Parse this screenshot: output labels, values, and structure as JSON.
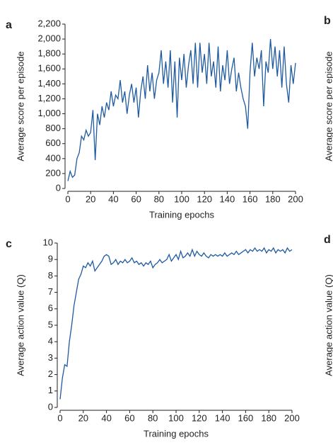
{
  "chart_data": [
    {
      "type": "line",
      "panel": "a",
      "y_label": "Average score per episode",
      "x_label": "Training epochs",
      "color": "#1f5aa0",
      "xlim": [
        0,
        200
      ],
      "xticks": [
        0,
        20,
        40,
        60,
        80,
        100,
        120,
        140,
        160,
        180,
        200
      ],
      "ylim": [
        0,
        2200
      ],
      "yticks": [
        0,
        200,
        400,
        600,
        800,
        {
          "value": 1000,
          "label": "1,000"
        },
        {
          "value": 1200,
          "label": "1,200"
        },
        {
          "value": 1400,
          "label": "1,400"
        },
        {
          "value": 1600,
          "label": "1,600"
        },
        {
          "value": 1800,
          "label": "1,800"
        },
        {
          "value": 2000,
          "label": "2,000"
        },
        {
          "value": 2200,
          "label": "2,200"
        }
      ],
      "x": [
        0,
        2,
        4,
        6,
        8,
        10,
        12,
        14,
        16,
        18,
        20,
        22,
        24,
        26,
        28,
        30,
        32,
        34,
        36,
        38,
        40,
        42,
        44,
        46,
        48,
        50,
        52,
        54,
        56,
        58,
        60,
        62,
        64,
        66,
        68,
        70,
        72,
        74,
        76,
        78,
        80,
        82,
        84,
        86,
        88,
        90,
        92,
        94,
        96,
        98,
        100,
        102,
        104,
        106,
        108,
        110,
        112,
        114,
        116,
        118,
        120,
        122,
        124,
        126,
        128,
        130,
        132,
        134,
        136,
        138,
        140,
        142,
        144,
        146,
        148,
        150,
        152,
        154,
        156,
        158,
        160,
        162,
        164,
        166,
        168,
        170,
        172,
        174,
        176,
        178,
        180,
        182,
        184,
        186,
        188,
        190,
        192,
        194,
        196,
        198,
        200
      ],
      "values": [
        100,
        230,
        150,
        180,
        400,
        480,
        700,
        650,
        780,
        700,
        750,
        1050,
        380,
        1000,
        850,
        1100,
        950,
        1150,
        1050,
        1300,
        1100,
        1250,
        1200,
        1450,
        1150,
        1300,
        1000,
        1250,
        1400,
        1150,
        1350,
        950,
        1300,
        1500,
        1200,
        1650,
        1300,
        1550,
        1200,
        1450,
        1550,
        1850,
        1400,
        1700,
        1350,
        1850,
        1150,
        1700,
        950,
        1750,
        1450,
        1800,
        1350,
        1650,
        1850,
        1400,
        1950,
        1350,
        1950,
        1550,
        1800,
        1400,
        1950,
        1500,
        1700,
        1350,
        1900,
        1300,
        1650,
        1450,
        1850,
        1400,
        1600,
        1750,
        1300,
        1550,
        1350,
        1200,
        1100,
        800,
        1550,
        1950,
        1500,
        1750,
        1600,
        1850,
        1100,
        1700,
        1550,
        2000,
        1600,
        1900,
        1500,
        1850,
        1350,
        1900,
        1400,
        1150,
        1650,
        1400,
        1680
      ]
    },
    {
      "type": "line",
      "panel": "c",
      "y_label": "Average action value (Q)",
      "x_label": "Training epochs",
      "color": "#1f5aa0",
      "xlim": [
        0,
        200
      ],
      "xticks": [
        0,
        20,
        40,
        60,
        80,
        100,
        120,
        140,
        160,
        180,
        200
      ],
      "ylim": [
        0,
        10
      ],
      "yticks": [
        0,
        1,
        2,
        3,
        4,
        5,
        6,
        7,
        8,
        9,
        10
      ],
      "x": [
        0,
        2,
        4,
        6,
        8,
        10,
        12,
        14,
        16,
        18,
        20,
        22,
        24,
        26,
        28,
        30,
        32,
        34,
        36,
        38,
        40,
        42,
        44,
        46,
        48,
        50,
        52,
        54,
        56,
        58,
        60,
        62,
        64,
        66,
        68,
        70,
        72,
        74,
        76,
        78,
        80,
        82,
        84,
        86,
        88,
        90,
        92,
        94,
        96,
        98,
        100,
        102,
        104,
        106,
        108,
        110,
        112,
        114,
        116,
        118,
        120,
        122,
        124,
        126,
        128,
        130,
        132,
        134,
        136,
        138,
        140,
        142,
        144,
        146,
        148,
        150,
        152,
        154,
        156,
        158,
        160,
        162,
        164,
        166,
        168,
        170,
        172,
        174,
        176,
        178,
        180,
        182,
        184,
        186,
        188,
        190,
        192,
        194,
        196,
        198,
        200
      ],
      "values": [
        0.5,
        1.8,
        2.6,
        2.5,
        4,
        5,
        6.2,
        7,
        7.8,
        8.1,
        8.6,
        8.5,
        8.8,
        8.6,
        8.9,
        8.3,
        8.5,
        8.7,
        8.9,
        9.2,
        9.3,
        9.2,
        8.7,
        8.8,
        9.0,
        8.7,
        8.9,
        8.8,
        9.0,
        8.8,
        8.9,
        9.1,
        8.8,
        8.9,
        8.7,
        8.8,
        8.6,
        8.8,
        8.7,
        8.9,
        8.5,
        8.7,
        8.8,
        9.0,
        8.8,
        8.9,
        9.0,
        9.3,
        8.9,
        9.1,
        9.3,
        9.0,
        9.5,
        9.1,
        9.2,
        9.4,
        9.2,
        9.6,
        9.2,
        9.5,
        9.3,
        9.2,
        9.4,
        9.2,
        9.1,
        9.3,
        9.2,
        9.3,
        9.2,
        9.3,
        9.2,
        9.4,
        9.2,
        9.3,
        9.4,
        9.3,
        9.5,
        9.3,
        9.4,
        9.5,
        9.6,
        9.4,
        9.6,
        9.5,
        9.7,
        9.5,
        9.6,
        9.5,
        9.7,
        9.4,
        9.6,
        9.5,
        9.7,
        9.4,
        9.6,
        9.5,
        9.6,
        9.4,
        9.7,
        9.5,
        9.6
      ]
    }
  ],
  "partial_panels": [
    {
      "panel": "b",
      "y_label": "Average score per episode"
    },
    {
      "panel": "d",
      "y_label": "Average action value (Q)"
    }
  ]
}
